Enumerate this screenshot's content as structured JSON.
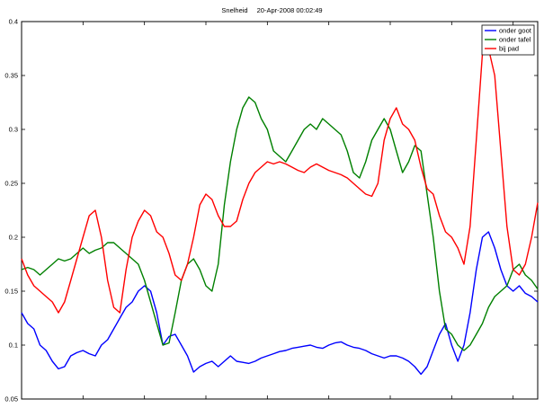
{
  "chart_data": {
    "type": "line",
    "title": "Snelheid",
    "subtitle": "20-Apr-2008 00:02:49",
    "xlabel": "",
    "ylabel": "",
    "xlim": [
      0,
      84
    ],
    "ylim": [
      0.05,
      0.4
    ],
    "yticks": [
      0.05,
      0.1,
      0.15,
      0.2,
      0.25,
      0.3,
      0.35,
      0.4
    ],
    "ytick_labels": [
      "0.05",
      "0.1",
      "0.15",
      "0.2",
      "0.25",
      "0.3",
      "0.35",
      "0.4"
    ],
    "xticks": [
      0,
      10,
      20,
      30,
      40,
      50,
      60,
      70,
      80
    ],
    "grid": false,
    "legend_position": "top-right",
    "series": [
      {
        "name": "onder goot",
        "color": "#0000ff",
        "x": [
          0,
          1,
          2,
          3,
          4,
          5,
          6,
          7,
          8,
          9,
          10,
          11,
          12,
          13,
          14,
          15,
          16,
          17,
          18,
          19,
          20,
          21,
          22,
          23,
          24,
          25,
          26,
          27,
          28,
          29,
          30,
          31,
          32,
          33,
          34,
          35,
          36,
          37,
          38,
          39,
          40,
          41,
          42,
          43,
          44,
          45,
          46,
          47,
          48,
          49,
          50,
          51,
          52,
          53,
          54,
          55,
          56,
          57,
          58,
          59,
          60,
          61,
          62,
          63,
          64,
          65,
          66,
          67,
          68,
          69,
          70,
          71,
          72,
          73,
          74,
          75,
          76,
          77,
          78,
          79,
          80,
          81,
          82,
          83,
          84
        ],
        "values": [
          0.13,
          0.12,
          0.115,
          0.1,
          0.095,
          0.085,
          0.078,
          0.08,
          0.09,
          0.093,
          0.095,
          0.092,
          0.09,
          0.1,
          0.105,
          0.115,
          0.125,
          0.135,
          0.14,
          0.15,
          0.155,
          0.15,
          0.13,
          0.1,
          0.108,
          0.11,
          0.1,
          0.09,
          0.075,
          0.08,
          0.083,
          0.085,
          0.08,
          0.085,
          0.09,
          0.085,
          0.084,
          0.083,
          0.085,
          0.088,
          0.09,
          0.092,
          0.094,
          0.095,
          0.097,
          0.098,
          0.099,
          0.1,
          0.098,
          0.097,
          0.1,
          0.102,
          0.103,
          0.1,
          0.098,
          0.097,
          0.095,
          0.092,
          0.09,
          0.088,
          0.09,
          0.09,
          0.088,
          0.085,
          0.08,
          0.073,
          0.08,
          0.095,
          0.11,
          0.12,
          0.1,
          0.085,
          0.1,
          0.13,
          0.17,
          0.2,
          0.205,
          0.19,
          0.17,
          0.155,
          0.15,
          0.155,
          0.148,
          0.145,
          0.14
        ]
      },
      {
        "name": "onder tafel",
        "color": "#008000",
        "x": [
          0,
          1,
          2,
          3,
          4,
          5,
          6,
          7,
          8,
          9,
          10,
          11,
          12,
          13,
          14,
          15,
          16,
          17,
          18,
          19,
          20,
          21,
          22,
          23,
          24,
          25,
          26,
          27,
          28,
          29,
          30,
          31,
          32,
          33,
          34,
          35,
          36,
          37,
          38,
          39,
          40,
          41,
          42,
          43,
          44,
          45,
          46,
          47,
          48,
          49,
          50,
          51,
          52,
          53,
          54,
          55,
          56,
          57,
          58,
          59,
          60,
          61,
          62,
          63,
          64,
          65,
          66,
          67,
          68,
          69,
          70,
          71,
          72,
          73,
          74,
          75,
          76,
          77,
          78,
          79,
          80,
          81,
          82,
          83,
          84
        ],
        "values": [
          0.17,
          0.172,
          0.17,
          0.165,
          0.17,
          0.175,
          0.18,
          0.178,
          0.18,
          0.185,
          0.19,
          0.185,
          0.188,
          0.19,
          0.195,
          0.195,
          0.19,
          0.185,
          0.18,
          0.175,
          0.16,
          0.14,
          0.12,
          0.1,
          0.102,
          0.13,
          0.16,
          0.175,
          0.18,
          0.17,
          0.155,
          0.15,
          0.175,
          0.23,
          0.27,
          0.3,
          0.32,
          0.33,
          0.325,
          0.31,
          0.3,
          0.28,
          0.275,
          0.27,
          0.28,
          0.29,
          0.3,
          0.305,
          0.3,
          0.31,
          0.305,
          0.3,
          0.295,
          0.28,
          0.26,
          0.255,
          0.27,
          0.29,
          0.3,
          0.31,
          0.3,
          0.28,
          0.26,
          0.27,
          0.285,
          0.28,
          0.24,
          0.2,
          0.15,
          0.115,
          0.11,
          0.1,
          0.095,
          0.1,
          0.11,
          0.12,
          0.135,
          0.145,
          0.15,
          0.155,
          0.17,
          0.175,
          0.165,
          0.16,
          0.152
        ]
      },
      {
        "name": "bij pad",
        "color": "#ff0000",
        "x": [
          0,
          1,
          2,
          3,
          4,
          5,
          6,
          7,
          8,
          9,
          10,
          11,
          12,
          13,
          14,
          15,
          16,
          17,
          18,
          19,
          20,
          21,
          22,
          23,
          24,
          25,
          26,
          27,
          28,
          29,
          30,
          31,
          32,
          33,
          34,
          35,
          36,
          37,
          38,
          39,
          40,
          41,
          42,
          43,
          44,
          45,
          46,
          47,
          48,
          49,
          50,
          51,
          52,
          53,
          54,
          55,
          56,
          57,
          58,
          59,
          60,
          61,
          62,
          63,
          64,
          65,
          66,
          67,
          68,
          69,
          70,
          71,
          72,
          73,
          74,
          75,
          76,
          77,
          78,
          79,
          80,
          81,
          82,
          83,
          84
        ],
        "values": [
          0.18,
          0.165,
          0.155,
          0.15,
          0.145,
          0.14,
          0.13,
          0.14,
          0.16,
          0.18,
          0.2,
          0.22,
          0.225,
          0.2,
          0.16,
          0.135,
          0.13,
          0.17,
          0.2,
          0.215,
          0.225,
          0.22,
          0.205,
          0.2,
          0.185,
          0.165,
          0.16,
          0.175,
          0.2,
          0.23,
          0.24,
          0.235,
          0.22,
          0.21,
          0.21,
          0.215,
          0.235,
          0.25,
          0.26,
          0.265,
          0.27,
          0.268,
          0.27,
          0.268,
          0.265,
          0.262,
          0.26,
          0.265,
          0.268,
          0.265,
          0.262,
          0.26,
          0.258,
          0.255,
          0.25,
          0.245,
          0.24,
          0.238,
          0.25,
          0.29,
          0.31,
          0.32,
          0.305,
          0.3,
          0.29,
          0.265,
          0.245,
          0.24,
          0.22,
          0.205,
          0.2,
          0.19,
          0.175,
          0.21,
          0.29,
          0.37,
          0.375,
          0.35,
          0.28,
          0.21,
          0.17,
          0.165,
          0.175,
          0.2,
          0.232
        ]
      }
    ]
  }
}
